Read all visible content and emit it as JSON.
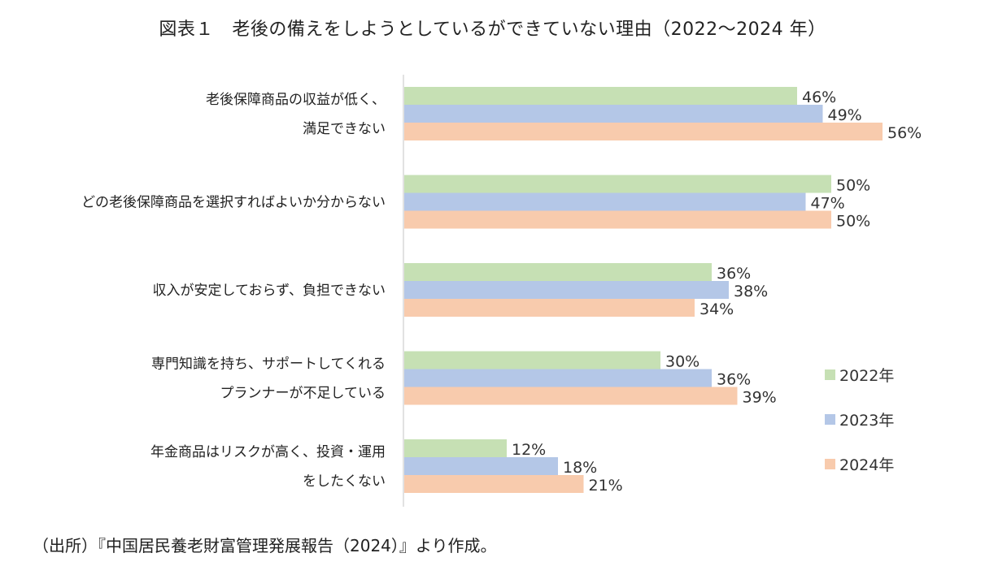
{
  "chart_data": {
    "type": "bar",
    "orientation": "horizontal",
    "title": "図表１　老後の備えをしようとしているができていない理由（2022～2024 年）",
    "categories": [
      [
        "老後保障商品の収益が低く、",
        "満足できない"
      ],
      [
        "どの老後保障商品を選択すればよいか分からない"
      ],
      [
        "収入が安定しておらず、負担できない"
      ],
      [
        "専門知識を持ち、サポートしてくれる",
        "プランナーが不足している"
      ],
      [
        "年金商品はリスクが高く、投資・運用",
        "をしたくない"
      ]
    ],
    "series": [
      {
        "name": "2022年",
        "color": "#c6e0b4",
        "values": [
          46,
          50,
          36,
          30,
          12
        ]
      },
      {
        "name": "2023年",
        "color": "#b4c7e7",
        "values": [
          49,
          47,
          38,
          36,
          18
        ]
      },
      {
        "name": "2024年",
        "color": "#f8cbad",
        "values": [
          56,
          50,
          34,
          39,
          21
        ]
      }
    ],
    "value_suffix": "%",
    "xlim": [
      0,
      60
    ],
    "grid": false,
    "legend": "right"
  },
  "source_note": "（出所）『中国居民養老財富管理発展報告（2024）』より作成。"
}
